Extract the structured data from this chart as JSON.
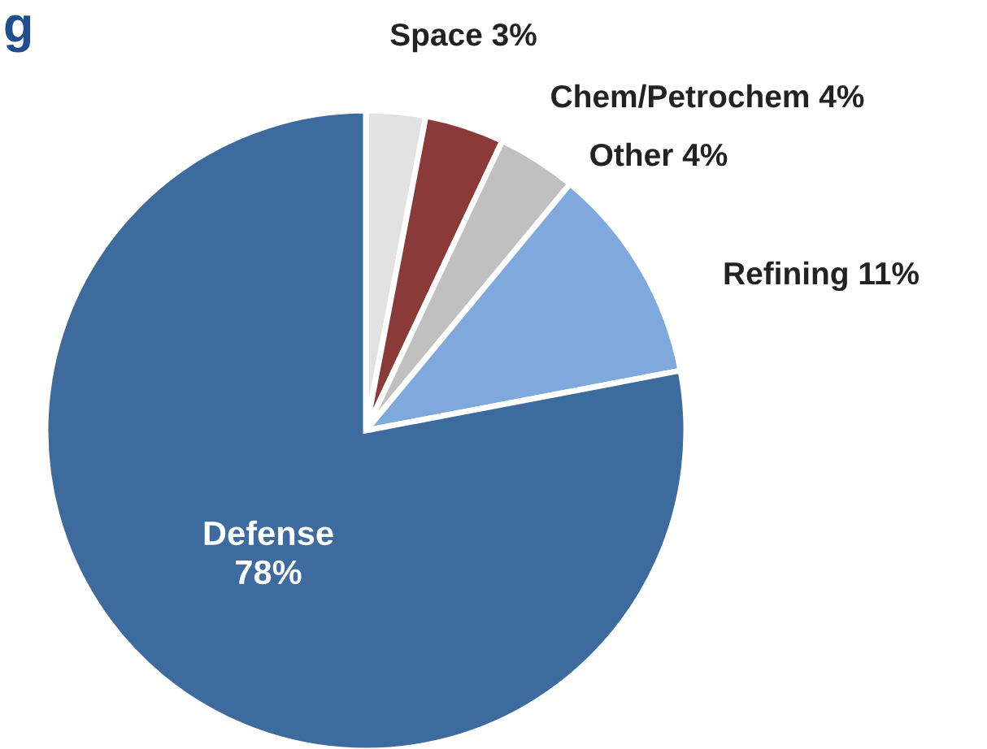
{
  "chart_data": {
    "type": "pie",
    "title": "g",
    "categories": [
      "Space",
      "Chem/Petrochem",
      "Other",
      "Refining",
      "Defense"
    ],
    "values": [
      3,
      4,
      4,
      11,
      78
    ],
    "value_labels": [
      "3%",
      "4%",
      "4%",
      "11%",
      "78%"
    ],
    "colors": [
      "#e2e2e2",
      "#8b3a3a",
      "#c0c0c0",
      "#7fa8dc",
      "#3e6b9e"
    ],
    "legend": false
  }
}
